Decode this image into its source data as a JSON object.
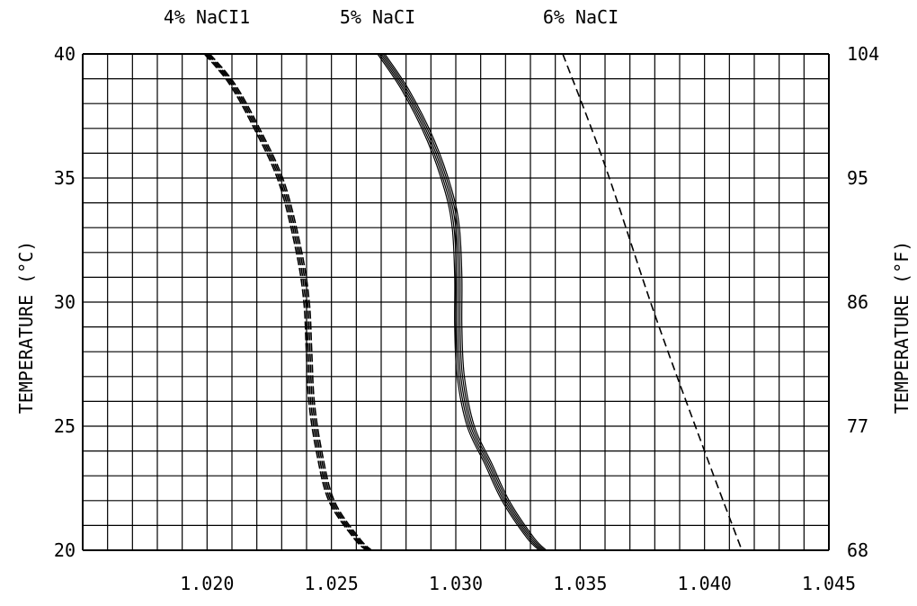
{
  "chart_data": {
    "type": "line",
    "series_labels": [
      "4% NaCI1",
      "5% NaCI",
      "6% NaCI"
    ],
    "ylabel_left": "TEMPERATURE (°C)",
    "ylabel_right": "TEMPERATURE (°F)",
    "x_ticks": [
      "1.020",
      "1.025",
      "1.030",
      "1.035",
      "1.040",
      "1.045"
    ],
    "y_left_ticks": [
      "20",
      "25",
      "30",
      "35",
      "40"
    ],
    "y_right_ticks": [
      "68",
      "77",
      "86",
      "95",
      "104"
    ],
    "xlim": [
      1.015,
      1.045
    ],
    "ylim": [
      20,
      40
    ],
    "x_minor_step": 0.001,
    "y_minor_step": 1,
    "grid": true,
    "series": [
      {
        "style": "heavy-dashed",
        "points": [
          [
            1.02,
            40
          ],
          [
            1.021,
            38.8
          ],
          [
            1.022,
            37.0
          ],
          [
            1.023,
            34.8
          ],
          [
            1.0237,
            32.0
          ],
          [
            1.024,
            30.0
          ],
          [
            1.0241,
            28.0
          ],
          [
            1.0242,
            26.0
          ],
          [
            1.0245,
            24.0
          ],
          [
            1.025,
            22.0
          ],
          [
            1.026,
            20.5
          ],
          [
            1.0265,
            20
          ]
        ]
      },
      {
        "style": "multi-solid",
        "points": [
          [
            1.027,
            40
          ],
          [
            1.028,
            38.5
          ],
          [
            1.029,
            36.5
          ],
          [
            1.0297,
            34.5
          ],
          [
            1.03,
            33.0
          ],
          [
            1.0301,
            31.0
          ],
          [
            1.0301,
            29.0
          ],
          [
            1.0302,
            27.0
          ],
          [
            1.0306,
            25.0
          ],
          [
            1.0313,
            23.5
          ],
          [
            1.032,
            22.0
          ],
          [
            1.033,
            20.5
          ],
          [
            1.0335,
            20
          ]
        ]
      },
      {
        "style": "thin-dashed",
        "points": [
          [
            1.0343,
            40
          ],
          [
            1.036,
            35.5
          ],
          [
            1.038,
            29.5
          ],
          [
            1.04,
            24.0
          ],
          [
            1.0415,
            20
          ]
        ]
      }
    ]
  }
}
